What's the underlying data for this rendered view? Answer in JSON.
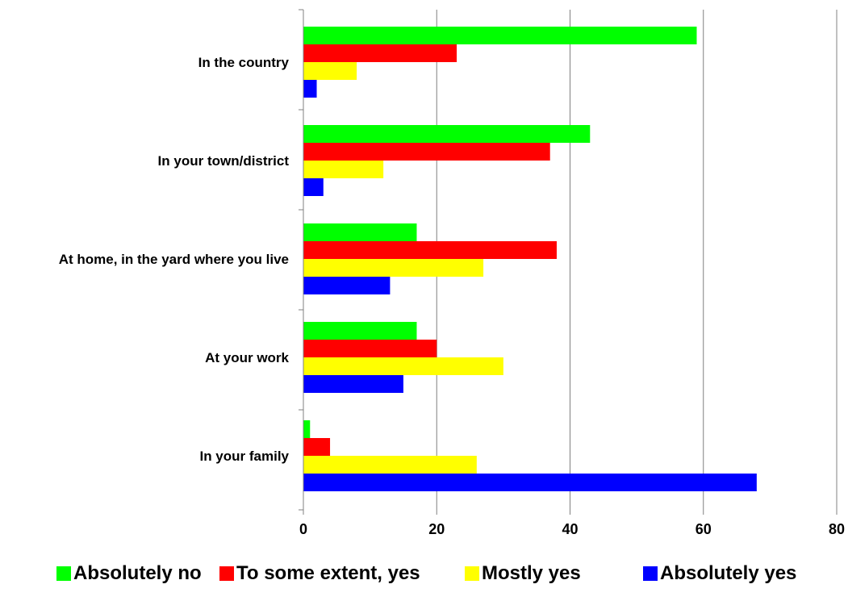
{
  "chart_data": {
    "type": "bar",
    "orientation": "horizontal",
    "title": "",
    "xlabel": "",
    "ylabel": "",
    "categories": [
      "In the country",
      "In your town/district",
      "At  home, in the yard where you live",
      "At your work",
      "In your family"
    ],
    "series": [
      {
        "name": "Absolutely no",
        "color": "#00ff00",
        "values": [
          59,
          43,
          17,
          17,
          1
        ]
      },
      {
        "name": "To some extent, yes",
        "color": "#ff0000",
        "values": [
          23,
          37,
          38,
          20,
          4
        ]
      },
      {
        "name": "Mostly yes",
        "color": "#ffff00",
        "values": [
          8,
          12,
          27,
          30,
          26
        ]
      },
      {
        "name": "Absolutely yes",
        "color": "#0000ff",
        "values": [
          2,
          3,
          13,
          15,
          68
        ]
      }
    ],
    "xlim": [
      0,
      80
    ],
    "x_ticks": [
      0,
      20,
      40,
      60,
      80
    ],
    "grid": "vertical",
    "legend": "bottom"
  }
}
